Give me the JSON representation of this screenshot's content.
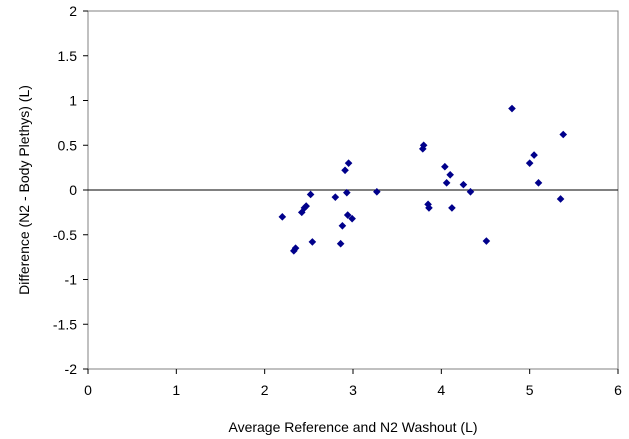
{
  "chart_data": {
    "type": "scatter",
    "title": "",
    "xlabel": "Average Reference and N2 Washout (L)",
    "ylabel": "Difference (N2 - Body Plethys) (L)",
    "xlim": [
      0,
      6
    ],
    "ylim": [
      -2,
      2
    ],
    "x_ticks": [
      "0",
      "1",
      "2",
      "3",
      "4",
      "5",
      "6"
    ],
    "y_ticks": [
      "2",
      "1.5",
      "1",
      "0.5",
      "0",
      "-0.5",
      "-1",
      "-1.5",
      "-2"
    ],
    "grid": false,
    "legend": "none",
    "marker_color": "#00008b",
    "zero_line": true,
    "points": [
      {
        "x": 2.2,
        "y": -0.3
      },
      {
        "x": 2.33,
        "y": -0.68
      },
      {
        "x": 2.35,
        "y": -0.65
      },
      {
        "x": 2.42,
        "y": -0.25
      },
      {
        "x": 2.45,
        "y": -0.2
      },
      {
        "x": 2.47,
        "y": -0.18
      },
      {
        "x": 2.52,
        "y": -0.05
      },
      {
        "x": 2.54,
        "y": -0.58
      },
      {
        "x": 2.8,
        "y": -0.08
      },
      {
        "x": 2.86,
        "y": -0.6
      },
      {
        "x": 2.88,
        "y": -0.4
      },
      {
        "x": 2.91,
        "y": 0.22
      },
      {
        "x": 2.93,
        "y": -0.03
      },
      {
        "x": 2.94,
        "y": -0.28
      },
      {
        "x": 2.95,
        "y": 0.3
      },
      {
        "x": 2.99,
        "y": -0.32
      },
      {
        "x": 3.27,
        "y": -0.02
      },
      {
        "x": 3.79,
        "y": 0.46
      },
      {
        "x": 3.8,
        "y": 0.5
      },
      {
        "x": 3.85,
        "y": -0.16
      },
      {
        "x": 3.86,
        "y": -0.2
      },
      {
        "x": 4.04,
        "y": 0.26
      },
      {
        "x": 4.06,
        "y": 0.08
      },
      {
        "x": 4.1,
        "y": 0.17
      },
      {
        "x": 4.12,
        "y": -0.2
      },
      {
        "x": 4.25,
        "y": 0.06
      },
      {
        "x": 4.33,
        "y": -0.02
      },
      {
        "x": 4.51,
        "y": -0.57
      },
      {
        "x": 4.8,
        "y": 0.91
      },
      {
        "x": 5.0,
        "y": 0.3
      },
      {
        "x": 5.05,
        "y": 0.39
      },
      {
        "x": 5.1,
        "y": 0.08
      },
      {
        "x": 5.35,
        "y": -0.1
      },
      {
        "x": 5.38,
        "y": 0.62
      }
    ]
  }
}
